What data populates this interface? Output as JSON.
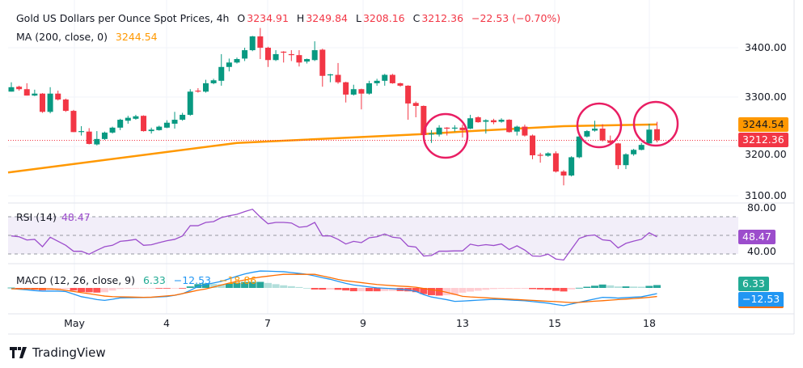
{
  "legend": {
    "title": "Gold US Dollars per Ounce Spot Prices, 4h",
    "o_label": "O",
    "o": "3234.91",
    "h_label": "H",
    "h": "3249.84",
    "l_label": "L",
    "l": "3208.16",
    "c_label": "C",
    "c": "3212.36",
    "change": "−22.53 (−0.70%)",
    "ma_label": "MA (200, close, 0)",
    "ma_value": "3244.54",
    "rsi_label": "RSI (14)",
    "rsi_value": "48.47",
    "macd_label": "MACD (12, 26, close, 9)",
    "macd_hist": "6.33",
    "macd_value": "−12.53",
    "macd_signal": "−18.86"
  },
  "price_axis": [
    "3400.00",
    "3300.00",
    "3100.00"
  ],
  "price_axis_hidden": "3200.00",
  "rsi_axis": [
    "80.00",
    "40.00"
  ],
  "tags": {
    "ma": "3244.54",
    "close": "3212.36",
    "rsi": "48.47",
    "macd_hist": "6.33",
    "macd": "−12.53"
  },
  "x_axis": [
    "May",
    "4",
    "7",
    "9",
    "13",
    "15",
    "18"
  ],
  "branding": "TradingView",
  "colors": {
    "up": "#089981",
    "down": "#f23645",
    "ma": "#ff9800",
    "rsi": "#9c4dcc",
    "macd": "#2196f3",
    "signal": "#ff6d00",
    "annotation": "#e91e63"
  },
  "chart_data": [
    {
      "type": "candlestick",
      "title": "Gold US Dollars per Ounce Spot Prices, 4h",
      "ylim": [
        3080,
        3470
      ],
      "grid": true,
      "ohlc": [
        [
          3311,
          3330,
          3311,
          3320
        ],
        [
          3321,
          3323,
          3313,
          3316
        ],
        [
          3316,
          3328,
          3303,
          3303
        ],
        [
          3303,
          3315,
          3302,
          3307
        ],
        [
          3307,
          3308,
          3268,
          3270
        ],
        [
          3270,
          3320,
          3267,
          3307
        ],
        [
          3307,
          3313,
          3293,
          3295
        ],
        [
          3295,
          3297,
          3270,
          3272
        ],
        [
          3272,
          3274,
          3229,
          3229
        ],
        [
          3229,
          3241,
          3222,
          3231
        ],
        [
          3230,
          3237,
          3204,
          3205
        ],
        [
          3204,
          3231,
          3202,
          3215
        ],
        [
          3215,
          3230,
          3213,
          3228
        ],
        [
          3228,
          3240,
          3226,
          3238
        ],
        [
          3238,
          3256,
          3233,
          3254
        ],
        [
          3252,
          3262,
          3246,
          3258
        ],
        [
          3256,
          3264,
          3254,
          3261
        ],
        [
          3262,
          3263,
          3230,
          3231
        ],
        [
          3231,
          3238,
          3226,
          3234
        ],
        [
          3233,
          3242,
          3232,
          3240
        ],
        [
          3238,
          3253,
          3237,
          3248
        ],
        [
          3246,
          3270,
          3236,
          3254
        ],
        [
          3254,
          3268,
          3252,
          3264
        ],
        [
          3264,
          3316,
          3262,
          3311
        ],
        [
          3313,
          3318,
          3309,
          3311
        ],
        [
          3311,
          3335,
          3309,
          3328
        ],
        [
          3328,
          3337,
          3326,
          3334
        ],
        [
          3333,
          3387,
          3323,
          3361
        ],
        [
          3361,
          3378,
          3352,
          3370
        ],
        [
          3370,
          3380,
          3368,
          3377
        ],
        [
          3378,
          3400,
          3373,
          3395
        ],
        [
          3395,
          3424,
          3393,
          3423
        ],
        [
          3423,
          3440,
          3377,
          3400
        ],
        [
          3400,
          3402,
          3361,
          3375
        ],
        [
          3375,
          3395,
          3373,
          3387
        ],
        [
          3392,
          3393,
          3370,
          3390
        ],
        [
          3387,
          3395,
          3373,
          3385
        ],
        [
          3385,
          3395,
          3362,
          3370
        ],
        [
          3372,
          3378,
          3368,
          3377
        ],
        [
          3375,
          3413,
          3373,
          3395
        ],
        [
          3396,
          3398,
          3321,
          3343
        ],
        [
          3344,
          3347,
          3330,
          3346
        ],
        [
          3345,
          3369,
          3327,
          3330
        ],
        [
          3330,
          3331,
          3289,
          3305
        ],
        [
          3305,
          3325,
          3303,
          3316
        ],
        [
          3316,
          3317,
          3275,
          3307
        ],
        [
          3307,
          3333,
          3305,
          3328
        ],
        [
          3328,
          3337,
          3323,
          3333
        ],
        [
          3333,
          3347,
          3323,
          3345
        ],
        [
          3345,
          3347,
          3327,
          3328
        ],
        [
          3328,
          3329,
          3321,
          3323
        ],
        [
          3323,
          3324,
          3254,
          3287
        ],
        [
          3288,
          3291,
          3259,
          3282
        ],
        [
          3282,
          3283,
          3222,
          3223
        ],
        [
          3224,
          3233,
          3207,
          3226
        ],
        [
          3224,
          3243,
          3220,
          3238
        ],
        [
          3238,
          3239,
          3222,
          3236
        ],
        [
          3236,
          3243,
          3230,
          3238
        ],
        [
          3238,
          3244,
          3218,
          3233
        ],
        [
          3236,
          3264,
          3235,
          3257
        ],
        [
          3259,
          3261,
          3248,
          3249
        ],
        [
          3250,
          3255,
          3226,
          3253
        ],
        [
          3253,
          3256,
          3245,
          3249
        ],
        [
          3250,
          3257,
          3248,
          3254
        ],
        [
          3254,
          3255,
          3228,
          3229
        ],
        [
          3230,
          3242,
          3222,
          3240
        ],
        [
          3240,
          3244,
          3220,
          3222
        ],
        [
          3222,
          3224,
          3174,
          3182
        ],
        [
          3183,
          3187,
          3167,
          3181
        ],
        [
          3181,
          3188,
          3179,
          3186
        ],
        [
          3186,
          3190,
          3147,
          3149
        ],
        [
          3149,
          3152,
          3121,
          3141
        ],
        [
          3141,
          3180,
          3139,
          3178
        ],
        [
          3178,
          3222,
          3176,
          3220
        ],
        [
          3220,
          3233,
          3218,
          3231
        ],
        [
          3232,
          3252,
          3230,
          3236
        ],
        [
          3236,
          3245,
          3210,
          3212
        ],
        [
          3212,
          3222,
          3205,
          3207
        ],
        [
          3206,
          3207,
          3154,
          3162
        ],
        [
          3162,
          3186,
          3154,
          3184
        ],
        [
          3184,
          3195,
          3181,
          3193
        ],
        [
          3193,
          3207,
          3192,
          3203
        ],
        [
          3206,
          3246,
          3204,
          3234
        ],
        [
          3234.91,
          3249.84,
          3208.16,
          3212.36
        ]
      ],
      "ma200": [
        [
          1,
          3148
        ],
        [
          30,
          3207
        ],
        [
          54,
          3225
        ],
        [
          60,
          3231
        ],
        [
          72,
          3241
        ],
        [
          84,
          3244.54
        ]
      ],
      "last_close": 3212.36
    },
    {
      "type": "line",
      "title": "RSI (14)",
      "ylim": [
        20,
        85
      ],
      "levels": [
        70,
        50,
        30
      ],
      "values": [
        49.4,
        48.5,
        45,
        45.7,
        37.8,
        48,
        43.6,
        39.3,
        32.9,
        32.9,
        29.7,
        34,
        37.8,
        39.3,
        43.6,
        44.4,
        45.7,
        39.3,
        39.9,
        42.2,
        44.2,
        45.7,
        49.4,
        60.4,
        60.4,
        63.9,
        64.8,
        69.1,
        71.1,
        72.6,
        75.5,
        78.1,
        69.7,
        62.5,
        63.9,
        63.9,
        63.3,
        58.7,
        59.6,
        63.9,
        49.4,
        49.4,
        45.7,
        40.7,
        43.6,
        42.2,
        47.4,
        48.5,
        51.5,
        48,
        47.1,
        38.5,
        37.4,
        27.8,
        28.4,
        33,
        33,
        33.3,
        33.3,
        40.5,
        38.8,
        40,
        39.1,
        40.8,
        34.8,
        38.8,
        34.2,
        27.8,
        27.5,
        29.8,
        24.6,
        23.5,
        35.1,
        46.7,
        49.6,
        50.4,
        45.2,
        44.3,
        36.5,
        41.4,
        43.8,
        45.8,
        52.8,
        48.47
      ]
    },
    {
      "type": "bar+line",
      "title": "MACD (12, 26, close, 9)",
      "macd": [
        -1.3,
        -2.8,
        -4.3,
        -5.9,
        -7,
        -7,
        -7,
        -8,
        -13.6,
        -19.3,
        -22.3,
        -25.7,
        -27.5,
        -25,
        -22,
        -21.7,
        -21.4,
        -21.1,
        -20.7,
        -19.8,
        -19,
        -16.3,
        -12.8,
        -5.5,
        3.2,
        7.6,
        10.9,
        14.5,
        20,
        25.8,
        30.8,
        34.5,
        37.4,
        37,
        36.4,
        35.8,
        33.9,
        32,
        30,
        26.5,
        22.6,
        19.1,
        14.6,
        10.1,
        6.5,
        4.4,
        2.3,
        0.2,
        -0.7,
        -1.6,
        -3,
        -4.5,
        -7.7,
        -14.8,
        -20,
        -23,
        -26,
        -29.7,
        -29,
        -28,
        -27,
        -26,
        -25.2,
        -25.6,
        -26.6,
        -27.5,
        -28.4,
        -30.1,
        -31.8,
        -33.6,
        -36.6,
        -39,
        -35.5,
        -31.6,
        -28,
        -24.4,
        -20.7,
        -21.3,
        -22.4,
        -21.3,
        -20.4,
        -19.5,
        -16.2,
        -12.53
      ],
      "signal": [
        -2,
        -2,
        -2,
        -2,
        -2,
        -2,
        -3.2,
        -5.4,
        -7.8,
        -10.3,
        -12.7,
        -15.4,
        -18,
        -19.2,
        -19.6,
        -20,
        -20.4,
        -20.8,
        -20.4,
        -19,
        -17.6,
        -16.1,
        -12.5,
        -8.8,
        -5.2,
        -2.2,
        2.1,
        6.4,
        10.7,
        14.3,
        17.6,
        21.2,
        24,
        26,
        28.1,
        30,
        30,
        30,
        30,
        30,
        26.4,
        22.7,
        18.7,
        15.7,
        13.8,
        11.7,
        9.6,
        7.6,
        6.2,
        5,
        3.9,
        3,
        1.6,
        -1.2,
        -4,
        -6,
        -9.8,
        -14,
        -18.5,
        -19.9,
        -20.8,
        -21.8,
        -22.8,
        -23.7,
        -24.7,
        -25.6,
        -26.6,
        -27.5,
        -28.5,
        -29.4,
        -30.2,
        -31.2,
        -32.3,
        -31.9,
        -30.6,
        -29.3,
        -28.2,
        -27,
        -25.7,
        -24.7,
        -23.4,
        -22.2,
        -20.7,
        -18.86
      ]
    }
  ]
}
